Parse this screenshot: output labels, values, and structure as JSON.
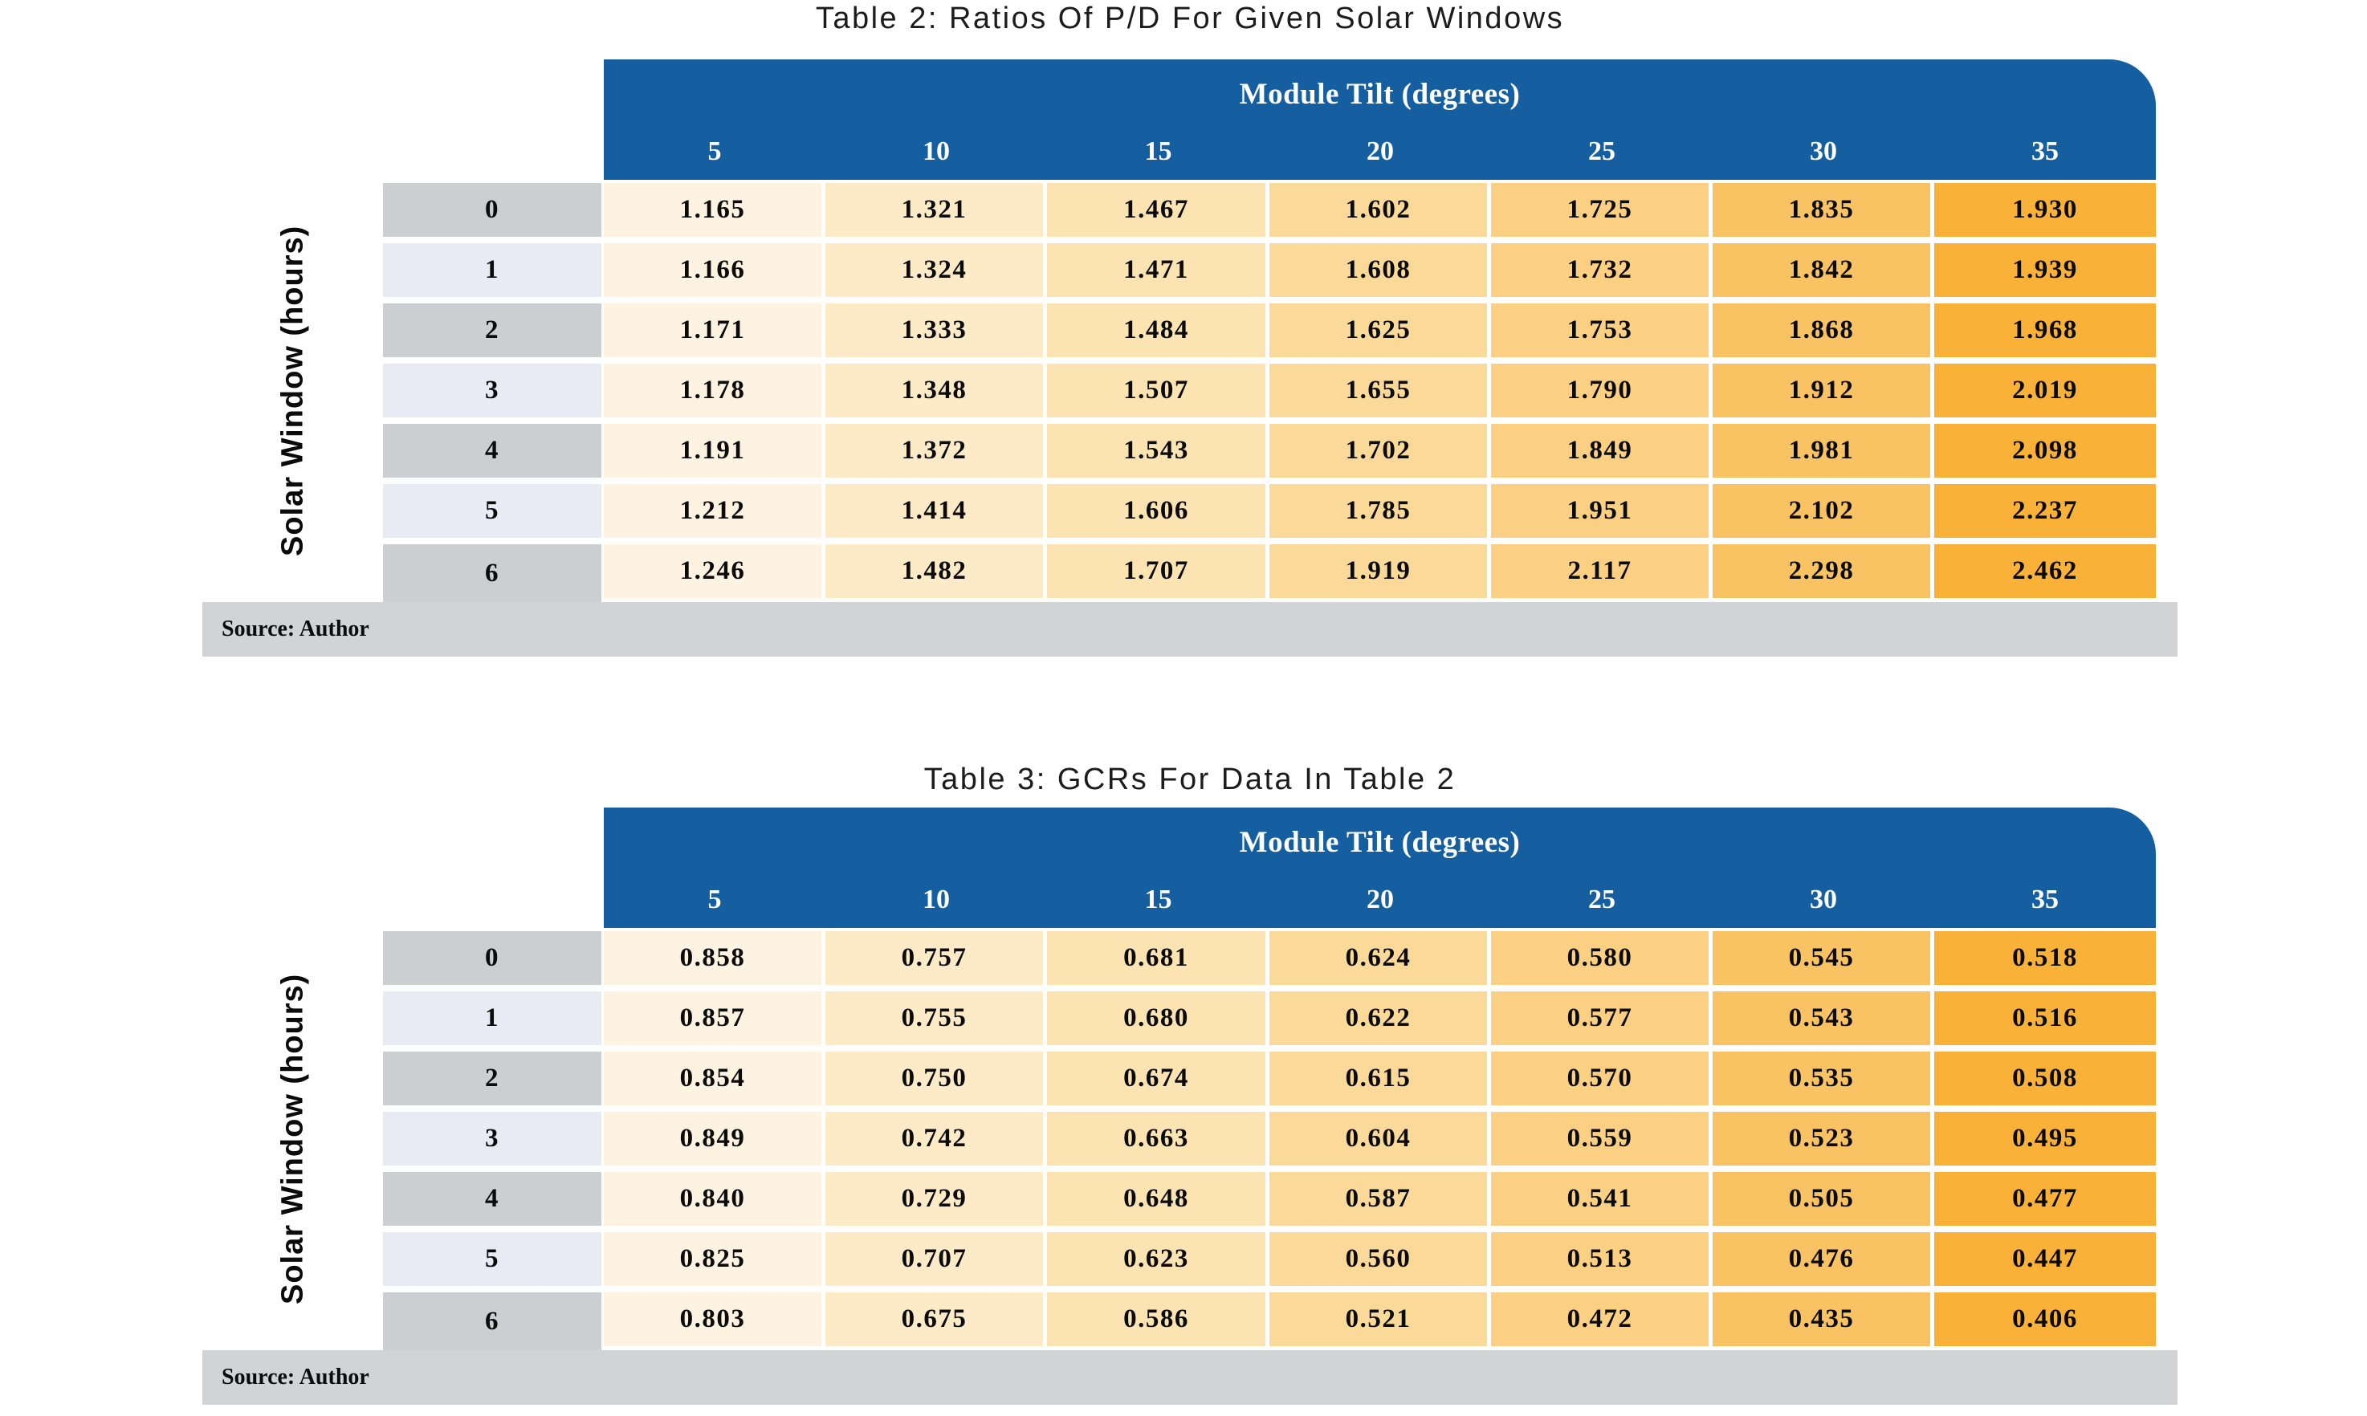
{
  "colors": {
    "page_background": "#ffffff",
    "header_blue": "#155fa0",
    "header_text_white": "#ffffff",
    "row_label_gray": "#cdced1",
    "row_label_lavender": "#e9eaf4",
    "source_bar_gray": "#d2d3d5",
    "text_black": "#0b0b0b",
    "column_shades": [
      "#fdf3e0",
      "#fdebc8",
      "#fce3b2",
      "#fbd999",
      "#fbd083",
      "#f9c363",
      "#f9b137"
    ]
  },
  "tables": [
    {
      "title": "Table 2: Ratios Of P/D For Given Solar Windows",
      "col_axis_label": "Module Tilt (degrees)",
      "row_axis_label": "Solar Window (hours)",
      "columns": [
        "5",
        "10",
        "15",
        "20",
        "25",
        "30",
        "35"
      ],
      "row_labels": [
        "0",
        "1",
        "2",
        "3",
        "4",
        "5",
        "6"
      ],
      "rows": [
        [
          "1.165",
          "1.321",
          "1.467",
          "1.602",
          "1.725",
          "1.835",
          "1.930"
        ],
        [
          "1.166",
          "1.324",
          "1.471",
          "1.608",
          "1.732",
          "1.842",
          "1.939"
        ],
        [
          "1.171",
          "1.333",
          "1.484",
          "1.625",
          "1.753",
          "1.868",
          "1.968"
        ],
        [
          "1.178",
          "1.348",
          "1.507",
          "1.655",
          "1.790",
          "1.912",
          "2.019"
        ],
        [
          "1.191",
          "1.372",
          "1.543",
          "1.702",
          "1.849",
          "1.981",
          "2.098"
        ],
        [
          "1.212",
          "1.414",
          "1.606",
          "1.785",
          "1.951",
          "2.102",
          "2.237"
        ],
        [
          "1.246",
          "1.482",
          "1.707",
          "1.919",
          "2.117",
          "2.298",
          "2.462"
        ]
      ],
      "source": "Source: Author"
    },
    {
      "title": "Table 3: GCRs For Data In Table 2",
      "col_axis_label": "Module Tilt (degrees)",
      "row_axis_label": "Solar Window (hours)",
      "columns": [
        "5",
        "10",
        "15",
        "20",
        "25",
        "30",
        "35"
      ],
      "row_labels": [
        "0",
        "1",
        "2",
        "3",
        "4",
        "5",
        "6"
      ],
      "rows": [
        [
          "0.858",
          "0.757",
          "0.681",
          "0.624",
          "0.580",
          "0.545",
          "0.518"
        ],
        [
          "0.857",
          "0.755",
          "0.680",
          "0.622",
          "0.577",
          "0.543",
          "0.516"
        ],
        [
          "0.854",
          "0.750",
          "0.674",
          "0.615",
          "0.570",
          "0.535",
          "0.508"
        ],
        [
          "0.849",
          "0.742",
          "0.663",
          "0.604",
          "0.559",
          "0.523",
          "0.495"
        ],
        [
          "0.840",
          "0.729",
          "0.648",
          "0.587",
          "0.541",
          "0.505",
          "0.477"
        ],
        [
          "0.825",
          "0.707",
          "0.623",
          "0.560",
          "0.513",
          "0.476",
          "0.447"
        ],
        [
          "0.803",
          "0.675",
          "0.586",
          "0.521",
          "0.472",
          "0.435",
          "0.406"
        ]
      ],
      "source": "Source: Author"
    }
  ]
}
